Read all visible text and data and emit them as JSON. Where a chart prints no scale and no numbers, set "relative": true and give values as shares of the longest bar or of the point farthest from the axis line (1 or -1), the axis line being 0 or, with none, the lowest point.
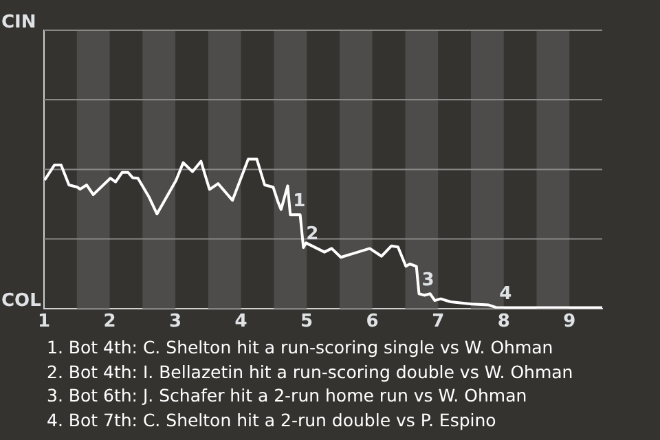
{
  "chart_data": {
    "type": "line",
    "relative": true,
    "x": [
      1.01,
      1.16,
      1.26,
      1.38,
      1.51,
      1.55,
      1.65,
      1.75,
      2.01,
      2.09,
      2.19,
      2.28,
      2.35,
      2.43,
      2.6,
      2.72,
      3.01,
      3.12,
      3.26,
      3.39,
      3.52,
      3.65,
      3.87,
      4.11,
      4.24,
      4.36,
      4.49,
      4.56,
      4.61,
      4.71,
      4.75,
      4.9,
      4.95,
      4.99,
      5.27,
      5.38,
      5.52,
      5.96,
      6.14,
      6.29,
      6.39,
      6.51,
      6.57,
      6.67,
      6.71,
      6.79,
      6.88,
      6.95,
      7.04,
      7.19,
      7.51,
      7.77,
      7.89,
      9.5
    ],
    "series": [
      {
        "color": "#ffffff",
        "values": [
          0.86,
          0.961,
          0.961,
          0.827,
          0.812,
          0.799,
          0.827,
          0.762,
          0.872,
          0.847,
          0.911,
          0.911,
          0.875,
          0.872,
          0.745,
          0.633,
          0.857,
          0.976,
          0.916,
          0.985,
          0.797,
          0.836,
          0.724,
          1,
          1,
          0.827,
          0.812,
          0.717,
          0.663,
          0.821,
          0.628,
          0.628,
          0.408,
          0.439,
          0.378,
          0.402,
          0.343,
          0.402,
          0.35,
          0.419,
          0.412,
          0.283,
          0.298,
          0.283,
          0.099,
          0.089,
          0.099,
          0.054,
          0.065,
          0.045,
          0.03,
          0.024,
          0.006,
          0.006
        ],
        "name": null
      }
    ],
    "xlim": [
      1,
      9.5
    ],
    "xticks": [
      1,
      2,
      3,
      4,
      5,
      6,
      7,
      8,
      9
    ],
    "ref_lines": [
      {
        "axis": "y",
        "value": 0.466,
        "color": "#8a8886"
      },
      {
        "axis": "y",
        "value": 0.931,
        "color": "#8a8886"
      },
      {
        "axis": "y",
        "value": 1.397,
        "color": "#8a8886"
      },
      {
        "axis": "y",
        "value": 1.862,
        "color": "#8a8886"
      }
    ],
    "tick_labels": "x",
    "bands": [
      {
        "axis": "x",
        "from": 1.5,
        "to": 2,
        "color": "#4d4c4a"
      },
      {
        "axis": "x",
        "from": 2.5,
        "to": 3,
        "color": "#4d4c4a"
      },
      {
        "axis": "x",
        "from": 3.5,
        "to": 4,
        "color": "#4d4c4a"
      },
      {
        "axis": "x",
        "from": 4.5,
        "to": 5,
        "color": "#4d4c4a"
      },
      {
        "axis": "x",
        "from": 5.5,
        "to": 6,
        "color": "#4d4c4a"
      },
      {
        "axis": "x",
        "from": 6.5,
        "to": 7,
        "color": "#4d4c4a"
      },
      {
        "axis": "x",
        "from": 7.5,
        "to": 8,
        "color": "#4d4c4a"
      },
      {
        "axis": "x",
        "from": 8.5,
        "to": 9,
        "color": "#4d4c4a"
      }
    ],
    "annotations": [
      "CIN",
      "COL",
      {
        "text": "1",
        "x": 4.75,
        "y": 0.628
      },
      {
        "text": "2",
        "x": 4.95,
        "y": 0.408
      },
      {
        "text": "3",
        "x": 6.71,
        "y": 0.099
      },
      {
        "text": "4",
        "x": 7.89,
        "y": 0.006
      },
      "1. Bot 4th: C. Shelton hit a run-scoring single vs W. Ohman",
      "2. Bot 4th: I. Bellazetin hit a run-scoring double vs W. Ohman",
      "3. Bot 6th: J. Schafer hit a 2-run home run vs W. Ohman",
      "4. Bot 7th: C. Shelton hit a 2-run double vs P. Espino"
    ],
    "marker": "none",
    "line_style": "solid",
    "legend": false
  }
}
